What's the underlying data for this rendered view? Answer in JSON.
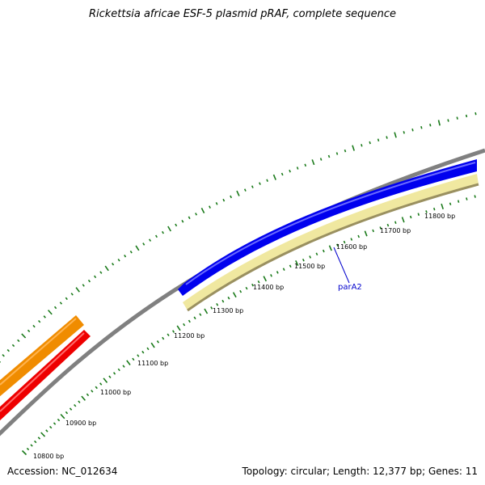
{
  "title": "Rickettsia africae ESF-5 plasmid pRAF, complete sequence",
  "accession": "Accession: NC_012634",
  "summary": "Topology: circular; Length: 12,377 bp; Genes: 11",
  "colors": {
    "backbone": "#808080",
    "tick": "#1a7a1a",
    "gene_blue": "#0000ee",
    "gene_pale": "#f0e8a0",
    "gene_orange": "#f08c00",
    "gene_red": "#ee0000",
    "label": "#0000cc"
  },
  "scale_labels": [
    "10800 bp",
    "10900 bp",
    "11000 bp",
    "11100 bp",
    "11200 bp",
    "11300 bp",
    "11400 bp",
    "11500 bp",
    "11600 bp",
    "11700 bp",
    "11800 bp"
  ],
  "gene_labels": [
    "parA2"
  ]
}
